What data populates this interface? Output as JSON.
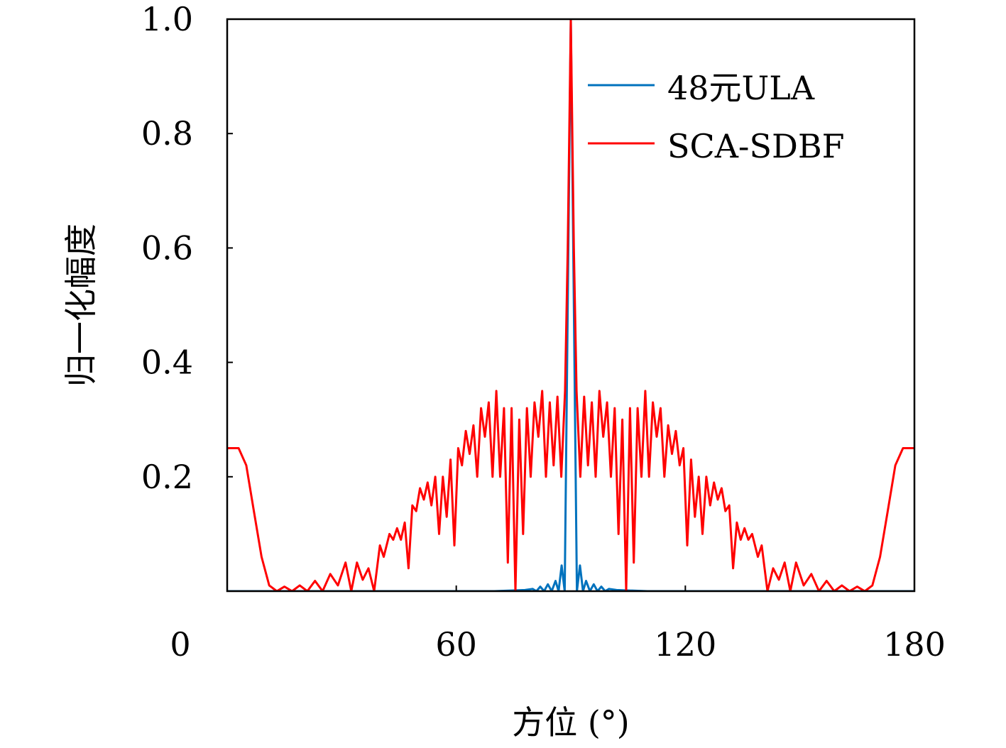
{
  "chart_data": {
    "type": "line",
    "xlabel": "方位 (°)",
    "ylabel": "归一化幅度",
    "xlim": [
      0,
      180
    ],
    "ylim": [
      0,
      1.0
    ],
    "x_ticks": [
      0,
      60,
      120,
      180
    ],
    "y_ticks": [
      0.2,
      0.4,
      0.6,
      0.8,
      1.0
    ],
    "x_tick_labels": [
      "0",
      "60",
      "120",
      "180"
    ],
    "y_tick_labels": [
      "0.2",
      "0.4",
      "0.6",
      "0.8",
      "1.0"
    ],
    "grid": false,
    "legend_position": "top-right",
    "series": [
      {
        "name": "48元ULA",
        "color": "#0072BD",
        "points": [
          [
            0,
            0.0
          ],
          [
            70,
            0.0
          ],
          [
            78,
            0.002
          ],
          [
            80,
            0.004
          ],
          [
            81,
            0.0
          ],
          [
            82,
            0.008
          ],
          [
            83,
            0.0
          ],
          [
            84,
            0.012
          ],
          [
            85,
            0.0
          ],
          [
            86,
            0.018
          ],
          [
            86.8,
            0.0
          ],
          [
            87.6,
            0.045
          ],
          [
            88.4,
            0.0
          ],
          [
            89.2,
            0.5
          ],
          [
            90,
            1.0
          ],
          [
            90.8,
            0.5
          ],
          [
            91.6,
            0.0
          ],
          [
            92.4,
            0.045
          ],
          [
            93.2,
            0.0
          ],
          [
            94,
            0.018
          ],
          [
            95,
            0.0
          ],
          [
            96,
            0.012
          ],
          [
            97,
            0.0
          ],
          [
            98,
            0.008
          ],
          [
            99,
            0.0
          ],
          [
            100,
            0.004
          ],
          [
            102,
            0.002
          ],
          [
            110,
            0.0
          ],
          [
            180,
            0.0
          ]
        ]
      },
      {
        "name": "SCA-SDBF",
        "color": "#FF0000",
        "points": [
          [
            0,
            0.25
          ],
          [
            3,
            0.25
          ],
          [
            5,
            0.22
          ],
          [
            7,
            0.14
          ],
          [
            9,
            0.06
          ],
          [
            11,
            0.01
          ],
          [
            13,
            0.0
          ],
          [
            15,
            0.008
          ],
          [
            17,
            0.0
          ],
          [
            19,
            0.01
          ],
          [
            21,
            0.0
          ],
          [
            23,
            0.018
          ],
          [
            25,
            0.0
          ],
          [
            27,
            0.03
          ],
          [
            29,
            0.01
          ],
          [
            31,
            0.05
          ],
          [
            32.5,
            0.0
          ],
          [
            34,
            0.05
          ],
          [
            35.5,
            0.02
          ],
          [
            37,
            0.04
          ],
          [
            38.5,
            0.0
          ],
          [
            40,
            0.08
          ],
          [
            41,
            0.06
          ],
          [
            42.5,
            0.1
          ],
          [
            43.5,
            0.09
          ],
          [
            44.5,
            0.11
          ],
          [
            45.5,
            0.09
          ],
          [
            46.5,
            0.12
          ],
          [
            47.5,
            0.04
          ],
          [
            48.5,
            0.15
          ],
          [
            49.5,
            0.14
          ],
          [
            50.5,
            0.18
          ],
          [
            51.5,
            0.16
          ],
          [
            52.5,
            0.19
          ],
          [
            53.5,
            0.15
          ],
          [
            54.5,
            0.2
          ],
          [
            55.5,
            0.1
          ],
          [
            56.5,
            0.2
          ],
          [
            57.5,
            0.13
          ],
          [
            58.5,
            0.23
          ],
          [
            59.5,
            0.08
          ],
          [
            60.5,
            0.25
          ],
          [
            61.5,
            0.22
          ],
          [
            62.5,
            0.28
          ],
          [
            63.5,
            0.24
          ],
          [
            64.5,
            0.29
          ],
          [
            65.5,
            0.2
          ],
          [
            66.5,
            0.32
          ],
          [
            67.5,
            0.27
          ],
          [
            68.5,
            0.33
          ],
          [
            69.5,
            0.2
          ],
          [
            70.5,
            0.35
          ],
          [
            71.5,
            0.2
          ],
          [
            72.5,
            0.32
          ],
          [
            73.5,
            0.05
          ],
          [
            74.5,
            0.32
          ],
          [
            75.5,
            0.0
          ],
          [
            76.5,
            0.3
          ],
          [
            77.5,
            0.1
          ],
          [
            78.5,
            0.32
          ],
          [
            79.5,
            0.2
          ],
          [
            80.5,
            0.33
          ],
          [
            81.5,
            0.27
          ],
          [
            82.5,
            0.35
          ],
          [
            83.5,
            0.2
          ],
          [
            84.5,
            0.33
          ],
          [
            85.5,
            0.22
          ],
          [
            86.5,
            0.34
          ],
          [
            87.5,
            0.2
          ],
          [
            88.5,
            0.35
          ],
          [
            89.2,
            0.6
          ],
          [
            90,
            1.0
          ],
          [
            90.8,
            0.6
          ],
          [
            91.5,
            0.35
          ],
          [
            92.5,
            0.2
          ],
          [
            93.5,
            0.34
          ],
          [
            94.5,
            0.22
          ],
          [
            95.5,
            0.33
          ],
          [
            96.5,
            0.2
          ],
          [
            97.5,
            0.35
          ],
          [
            98.5,
            0.27
          ],
          [
            99.5,
            0.33
          ],
          [
            100.5,
            0.2
          ],
          [
            101.5,
            0.32
          ],
          [
            102.5,
            0.1
          ],
          [
            103.5,
            0.3
          ],
          [
            104.5,
            0.0
          ],
          [
            105.5,
            0.32
          ],
          [
            106.5,
            0.05
          ],
          [
            107.5,
            0.32
          ],
          [
            108.5,
            0.2
          ],
          [
            109.5,
            0.35
          ],
          [
            110.5,
            0.2
          ],
          [
            111.5,
            0.33
          ],
          [
            112.5,
            0.27
          ],
          [
            113.5,
            0.32
          ],
          [
            114.5,
            0.2
          ],
          [
            115.5,
            0.29
          ],
          [
            116.5,
            0.24
          ],
          [
            117.5,
            0.28
          ],
          [
            118.5,
            0.22
          ],
          [
            119.5,
            0.25
          ],
          [
            120.5,
            0.08
          ],
          [
            121.5,
            0.23
          ],
          [
            122.5,
            0.13
          ],
          [
            123.5,
            0.2
          ],
          [
            124.5,
            0.1
          ],
          [
            125.5,
            0.2
          ],
          [
            126.5,
            0.15
          ],
          [
            127.5,
            0.19
          ],
          [
            128.5,
            0.16
          ],
          [
            129.5,
            0.18
          ],
          [
            130.5,
            0.14
          ],
          [
            131.5,
            0.15
          ],
          [
            132.5,
            0.04
          ],
          [
            133.5,
            0.12
          ],
          [
            134.5,
            0.09
          ],
          [
            135.5,
            0.11
          ],
          [
            136.5,
            0.09
          ],
          [
            137.5,
            0.1
          ],
          [
            139,
            0.06
          ],
          [
            140,
            0.08
          ],
          [
            141.5,
            0.0
          ],
          [
            143,
            0.04
          ],
          [
            144.5,
            0.02
          ],
          [
            146,
            0.05
          ],
          [
            147.5,
            0.0
          ],
          [
            149,
            0.05
          ],
          [
            151,
            0.01
          ],
          [
            153,
            0.03
          ],
          [
            155,
            0.0
          ],
          [
            157,
            0.018
          ],
          [
            159,
            0.0
          ],
          [
            161,
            0.01
          ],
          [
            163,
            0.0
          ],
          [
            165,
            0.008
          ],
          [
            167,
            0.0
          ],
          [
            169,
            0.01
          ],
          [
            171,
            0.06
          ],
          [
            173,
            0.14
          ],
          [
            175,
            0.22
          ],
          [
            177,
            0.25
          ],
          [
            180,
            0.25
          ]
        ]
      }
    ]
  }
}
